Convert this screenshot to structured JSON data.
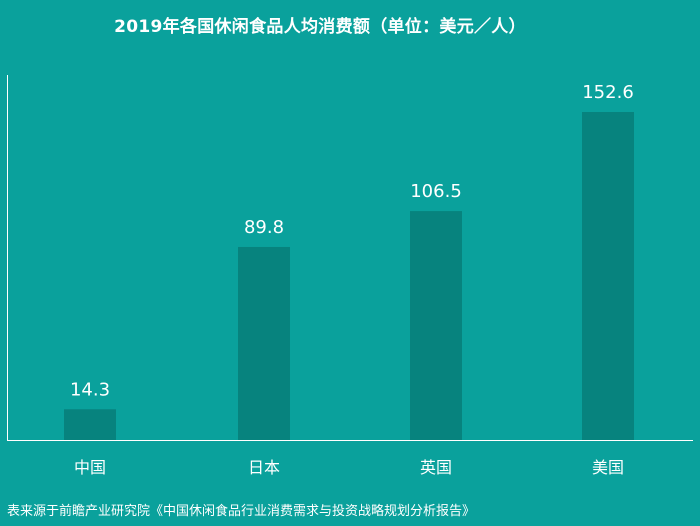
{
  "chart_data": {
    "type": "bar",
    "title": "2019年各国休闲食品人均消费额（单位：美元／人）",
    "categories": [
      "中国",
      "日本",
      "英国",
      "美国"
    ],
    "values": [
      14.3,
      89.8,
      106.5,
      152.6
    ],
    "value_labels": [
      "14.3",
      "89.8",
      "106.5",
      "152.6"
    ],
    "xlabel": "",
    "ylabel": "",
    "ylim": [
      0,
      152.6
    ],
    "grid": false,
    "colors": {
      "background": "#0aa19c",
      "bar": "#07837e",
      "axis": "#ffffff",
      "text": "#ffffff"
    }
  },
  "source": "表来源于前瞻产业研究院《中国休闲食品行业消费需求与投资战略规划分析报告》"
}
